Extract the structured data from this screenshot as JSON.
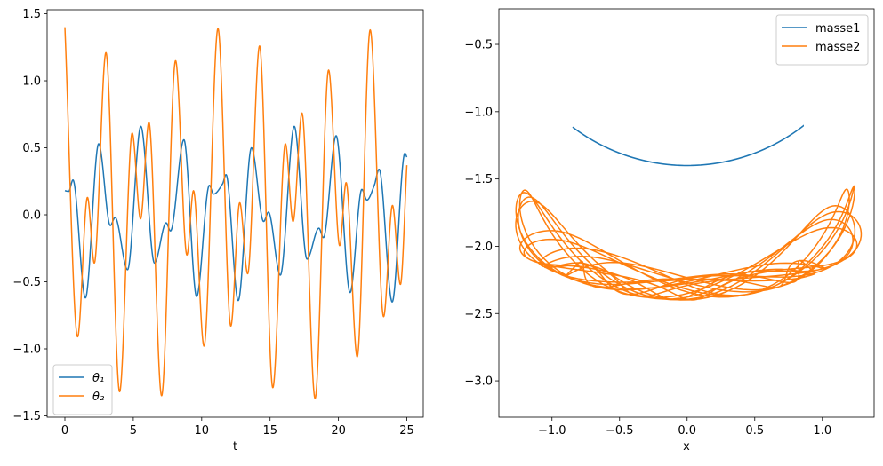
{
  "chart_data": [
    {
      "type": "line",
      "xlabel": "t",
      "ylabel": "",
      "xlim": [
        -1.3,
        26.2
      ],
      "ylim": [
        -1.51,
        1.53
      ],
      "xticks": [
        0,
        5,
        10,
        15,
        20,
        25
      ],
      "xtick_labels": [
        "0",
        "5",
        "10",
        "15",
        "20",
        "25"
      ],
      "yticks": [
        -1.5,
        -1.0,
        -0.5,
        0.0,
        0.5,
        1.0,
        1.5
      ],
      "ytick_labels": [
        "−1.5",
        "−1.0",
        "−0.5",
        "0.0",
        "0.5",
        "1.0",
        "1.5"
      ],
      "grid": false,
      "legend": "lower-left",
      "series": [
        {
          "name": "θ₁",
          "color": "#1f77b4",
          "t": [
            0,
            0.28,
            0.59,
            1.5,
            2.47,
            3.32,
            3.67,
            4.58,
            5.55,
            6.55,
            7.4,
            7.72,
            8.7,
            9.63,
            10.56,
            10.87,
            11.52,
            11.78,
            12.67,
            13.64,
            14.53,
            14.88,
            15.75,
            16.77,
            17.7,
            18.57,
            18.9,
            19.83,
            20.85,
            21.71,
            22.08,
            22.62,
            22.97,
            23.93,
            24.86,
            25
          ],
          "values": [
            0.18,
            0.175,
            0.26,
            -0.62,
            0.53,
            -0.08,
            -0.02,
            -0.41,
            0.66,
            -0.36,
            -0.06,
            -0.12,
            0.56,
            -0.61,
            0.22,
            0.155,
            0.23,
            0.3,
            -0.64,
            0.5,
            -0.05,
            0.02,
            -0.45,
            0.66,
            -0.33,
            -0.1,
            -0.17,
            0.59,
            -0.58,
            0.19,
            0.11,
            0.22,
            0.34,
            -0.65,
            0.46,
            0.43
          ]
        },
        {
          "name": "θ₂",
          "color": "#ff7f0e",
          "t": [
            0,
            0.93,
            1.65,
            2.15,
            3.0,
            4.0,
            4.92,
            5.53,
            6.14,
            7.07,
            8.09,
            8.92,
            9.4,
            10.17,
            11.19,
            12.13,
            12.78,
            13.36,
            14.23,
            15.2,
            16.12,
            16.68,
            17.33,
            18.29,
            19.28,
            20.09,
            20.56,
            21.37,
            22.32,
            23.3,
            23.95,
            24.53,
            25
          ],
          "values": [
            1.4,
            -0.91,
            0.13,
            -0.36,
            1.21,
            -1.32,
            0.61,
            -0.03,
            0.69,
            -1.35,
            1.15,
            -0.3,
            0.18,
            -0.98,
            1.39,
            -0.83,
            0.09,
            -0.44,
            1.26,
            -1.29,
            0.53,
            -0.05,
            0.76,
            -1.37,
            1.08,
            -0.23,
            0.24,
            -1.06,
            1.38,
            -0.76,
            0.07,
            -0.52,
            0.37
          ]
        }
      ]
    },
    {
      "type": "line",
      "xlabel": "x",
      "ylabel": "",
      "xlim": [
        -1.393,
        1.383
      ],
      "ylim": [
        -3.27,
        -0.236
      ],
      "xticks": [
        -1.0,
        -0.5,
        0.0,
        0.5,
        1.0
      ],
      "xtick_labels": [
        "−1.0",
        "−0.5",
        "0.0",
        "0.5",
        "1.0"
      ],
      "yticks": [
        -3.0,
        -2.5,
        -2.0,
        -1.5,
        -1.0,
        -0.5
      ],
      "ytick_labels": [
        "−3.0",
        "−2.5",
        "−2.0",
        "−1.5",
        "−1.0",
        "−0.5"
      ],
      "grid": false,
      "legend": "upper-right",
      "series": [
        {
          "name": "masse1",
          "color": "#1f77b4"
        },
        {
          "name": "masse2",
          "color": "#ff7f0e"
        }
      ]
    }
  ]
}
